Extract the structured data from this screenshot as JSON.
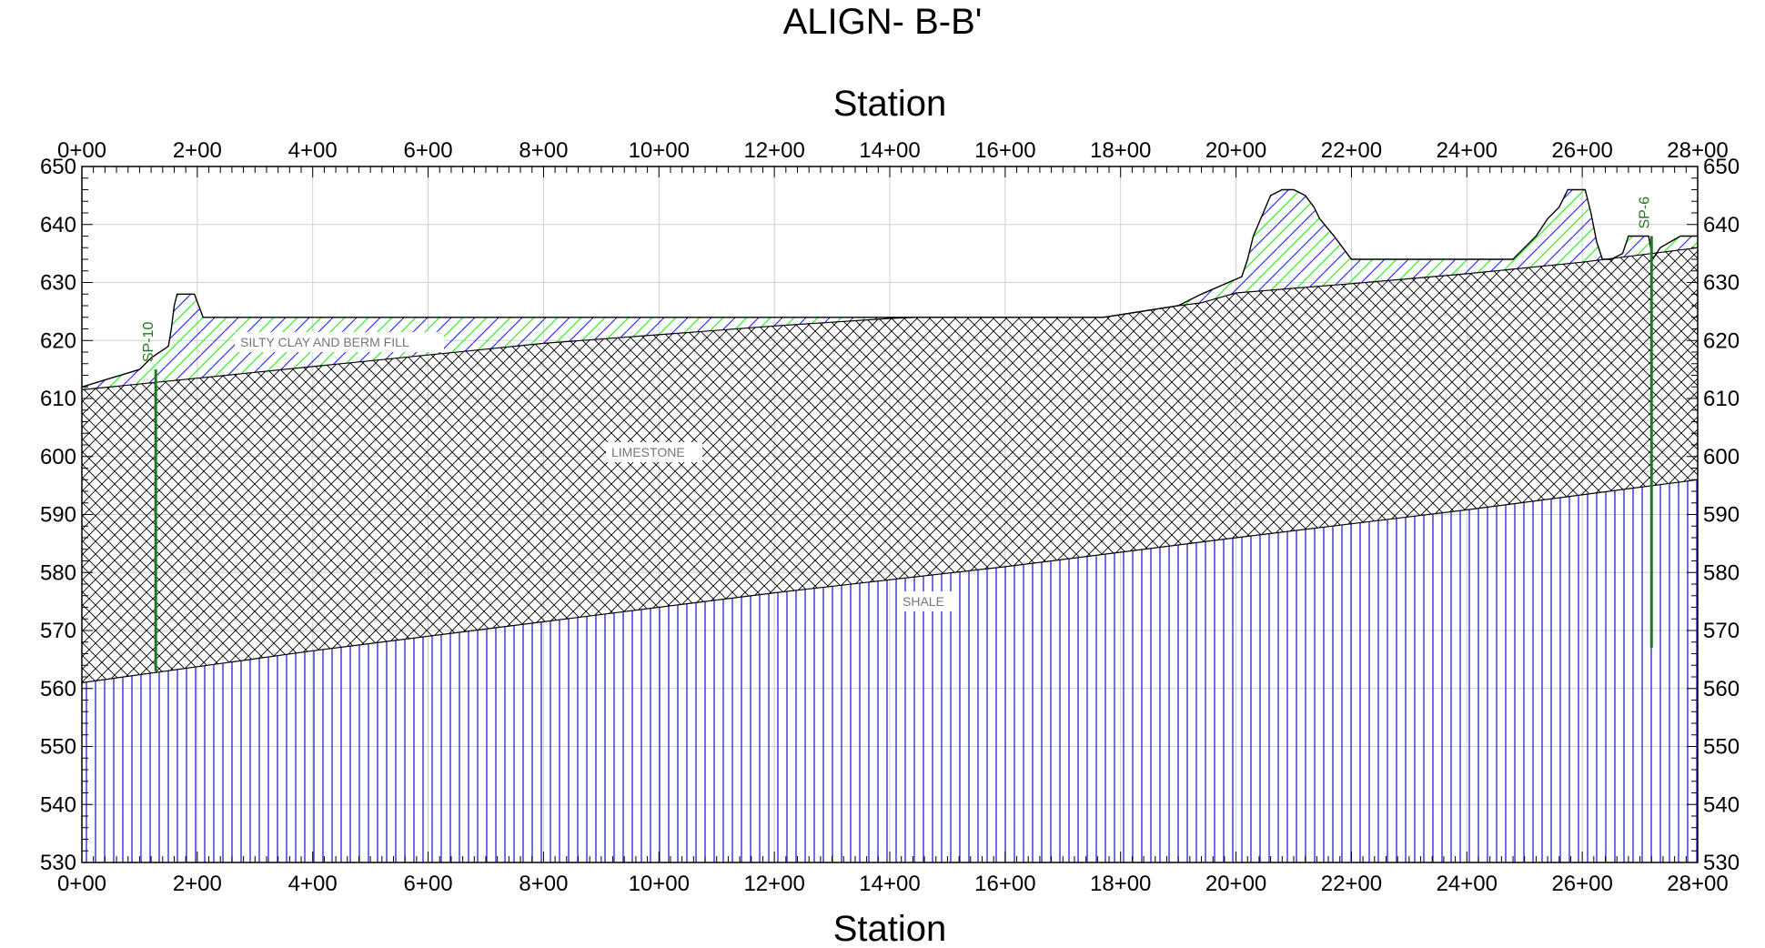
{
  "title": "ALIGN- B-B'",
  "axes": {
    "x_title": "Station",
    "x_ticks": [
      "0+00",
      "2+00",
      "4+00",
      "6+00",
      "8+00",
      "10+00",
      "12+00",
      "14+00",
      "16+00",
      "18+00",
      "20+00",
      "22+00",
      "24+00",
      "26+00",
      "28+00"
    ],
    "x_range_ft": [
      0,
      2800
    ],
    "y_ticks": [
      "650",
      "640",
      "630",
      "620",
      "610",
      "600",
      "590",
      "580",
      "570",
      "560",
      "550",
      "540",
      "530"
    ],
    "y_range_ft": [
      530,
      650
    ]
  },
  "units": [
    {
      "name": "SILTY CLAY AND BERM FILL",
      "pattern": "diagonal-hatch-blue-green"
    },
    {
      "name": "LIMESTONE",
      "pattern": "cross-hatch-black"
    },
    {
      "name": "SHALE",
      "pattern": "vertical-lines-blue"
    }
  ],
  "borings": [
    {
      "name": "SP-10",
      "station_ft": 128,
      "top_elev": 615,
      "bottom_elev": 563
    },
    {
      "name": "SP-6",
      "station_ft": 2720,
      "top_elev": 638,
      "bottom_elev": 567
    }
  ],
  "profiles": {
    "ground_surface": [
      [
        0,
        612
      ],
      [
        100,
        615
      ],
      [
        120,
        617
      ],
      [
        150,
        619
      ],
      [
        155,
        622
      ],
      [
        160,
        626
      ],
      [
        165,
        628
      ],
      [
        195,
        628
      ],
      [
        210,
        624
      ],
      [
        1450,
        624
      ],
      [
        1770,
        624
      ],
      [
        1900,
        626
      ],
      [
        1940,
        628
      ],
      [
        2010,
        631
      ],
      [
        2020,
        634
      ],
      [
        2025,
        636
      ],
      [
        2030,
        638
      ],
      [
        2060,
        645
      ],
      [
        2080,
        646
      ],
      [
        2100,
        646
      ],
      [
        2120,
        645
      ],
      [
        2135,
        643
      ],
      [
        2145,
        641
      ],
      [
        2170,
        638
      ],
      [
        2185,
        636
      ],
      [
        2200,
        634
      ],
      [
        2210,
        634
      ],
      [
        2480,
        634
      ],
      [
        2500,
        636
      ],
      [
        2520,
        638
      ],
      [
        2540,
        641
      ],
      [
        2560,
        643
      ],
      [
        2575,
        646
      ],
      [
        2605,
        646
      ],
      [
        2615,
        642
      ],
      [
        2625,
        637
      ],
      [
        2635,
        634
      ],
      [
        2650,
        634
      ],
      [
        2670,
        635
      ],
      [
        2680,
        638
      ],
      [
        2715,
        638
      ],
      [
        2722,
        634
      ],
      [
        2735,
        636
      ],
      [
        2770,
        638
      ],
      [
        2800,
        638
      ]
    ],
    "top_of_limestone": [
      [
        0,
        611.5
      ],
      [
        200,
        613.5
      ],
      [
        400,
        615.5
      ],
      [
        600,
        617.5
      ],
      [
        800,
        619.5
      ],
      [
        1000,
        621
      ],
      [
        1200,
        622.5
      ],
      [
        1400,
        623.8
      ],
      [
        1450,
        624
      ],
      [
        1770,
        624
      ],
      [
        1900,
        626
      ],
      [
        1940,
        626.5
      ],
      [
        2000,
        628.2
      ],
      [
        2200,
        629.8
      ],
      [
        2400,
        631.5
      ],
      [
        2600,
        633.5
      ],
      [
        2800,
        636
      ]
    ],
    "top_of_shale": [
      [
        0,
        561
      ],
      [
        400,
        566.5
      ],
      [
        800,
        571.5
      ],
      [
        1200,
        576.5
      ],
      [
        1600,
        581
      ],
      [
        2000,
        586
      ],
      [
        2400,
        590.8
      ],
      [
        2800,
        596
      ]
    ]
  }
}
